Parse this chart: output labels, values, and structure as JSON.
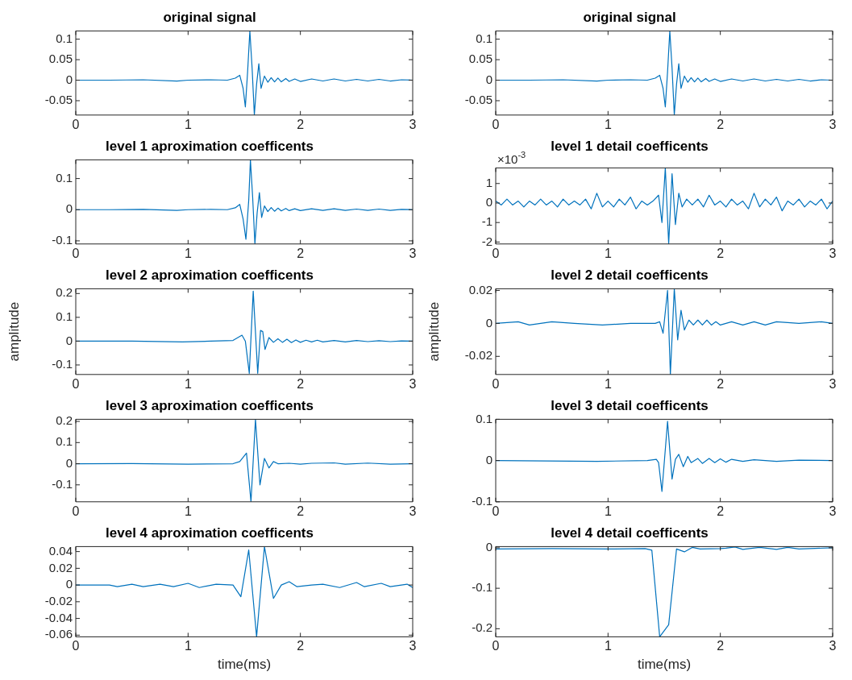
{
  "chart_data": [
    {
      "type": "line",
      "title": "original signal",
      "color": "#0072bd",
      "xlim": [
        0,
        3
      ],
      "xticks": [
        0,
        1,
        2,
        3
      ],
      "ylim": [
        -0.085,
        0.12
      ],
      "yticks": [
        -0.05,
        0,
        0.05,
        0.1
      ],
      "x": [
        0,
        0.3,
        0.6,
        0.9,
        1.0,
        1.2,
        1.35,
        1.42,
        1.46,
        1.49,
        1.51,
        1.53,
        1.55,
        1.57,
        1.59,
        1.61,
        1.63,
        1.65,
        1.68,
        1.71,
        1.74,
        1.77,
        1.8,
        1.83,
        1.87,
        1.9,
        1.95,
        2.0,
        2.1,
        2.2,
        2.3,
        2.4,
        2.5,
        2.6,
        2.7,
        2.8,
        2.9,
        3
      ],
      "values": [
        0,
        0,
        0.001,
        -0.002,
        0,
        0.001,
        0,
        0.005,
        0.012,
        -0.02,
        -0.065,
        0.02,
        0.12,
        0.03,
        -0.085,
        -0.01,
        0.04,
        -0.02,
        0.01,
        -0.005,
        0.006,
        -0.004,
        0.005,
        -0.004,
        0.004,
        -0.003,
        0.003,
        -0.003,
        0.003,
        -0.002,
        0.003,
        -0.002,
        0.002,
        -0.002,
        0.002,
        -0.002,
        0.001,
        0
      ]
    },
    {
      "type": "line",
      "title": "original signal",
      "color": "#0072bd",
      "xlim": [
        0,
        3
      ],
      "xticks": [
        0,
        1,
        2,
        3
      ],
      "ylim": [
        -0.085,
        0.12
      ],
      "yticks": [
        -0.05,
        0,
        0.05,
        0.1
      ],
      "x": [
        0,
        0.3,
        0.6,
        0.9,
        1.0,
        1.2,
        1.35,
        1.42,
        1.46,
        1.49,
        1.51,
        1.53,
        1.55,
        1.57,
        1.59,
        1.61,
        1.63,
        1.65,
        1.68,
        1.71,
        1.74,
        1.77,
        1.8,
        1.83,
        1.87,
        1.9,
        1.95,
        2.0,
        2.1,
        2.2,
        2.3,
        2.4,
        2.5,
        2.6,
        2.7,
        2.8,
        2.9,
        3
      ],
      "values": [
        0,
        0,
        0.001,
        -0.002,
        0,
        0.001,
        0,
        0.005,
        0.012,
        -0.02,
        -0.065,
        0.02,
        0.12,
        0.03,
        -0.085,
        -0.01,
        0.04,
        -0.02,
        0.01,
        -0.005,
        0.006,
        -0.004,
        0.005,
        -0.004,
        0.004,
        -0.003,
        0.003,
        -0.003,
        0.003,
        -0.002,
        0.003,
        -0.002,
        0.002,
        -0.002,
        0.002,
        -0.002,
        0.001,
        0
      ]
    },
    {
      "type": "line",
      "title": "level 1 aproximation coefficents",
      "color": "#0072bd",
      "xlim": [
        0,
        3
      ],
      "xticks": [
        0,
        1,
        2,
        3
      ],
      "ylim": [
        -0.11,
        0.16
      ],
      "yticks": [
        -0.1,
        0,
        0.1
      ],
      "x": [
        0,
        0.3,
        0.6,
        0.9,
        1.0,
        1.2,
        1.35,
        1.42,
        1.46,
        1.49,
        1.515,
        1.54,
        1.555,
        1.575,
        1.595,
        1.615,
        1.635,
        1.655,
        1.68,
        1.71,
        1.74,
        1.77,
        1.8,
        1.83,
        1.87,
        1.9,
        1.95,
        2.0,
        2.1,
        2.2,
        2.3,
        2.4,
        2.5,
        2.6,
        2.7,
        2.8,
        2.9,
        3
      ],
      "values": [
        0,
        0,
        0.001,
        -0.002,
        0,
        0.001,
        0,
        0.006,
        0.017,
        -0.03,
        -0.095,
        0.03,
        0.16,
        0.04,
        -0.11,
        -0.01,
        0.055,
        -0.025,
        0.012,
        -0.006,
        0.007,
        -0.005,
        0.005,
        -0.004,
        0.004,
        -0.003,
        0.003,
        -0.003,
        0.003,
        -0.002,
        0.003,
        -0.002,
        0.002,
        -0.002,
        0.002,
        -0.002,
        0.001,
        0
      ]
    },
    {
      "type": "line",
      "title": "level 1 detail coefficents",
      "color": "#0072bd",
      "xlim": [
        0,
        3
      ],
      "xticks": [
        0,
        1,
        2,
        3
      ],
      "ylim": [
        -2.1,
        1.8
      ],
      "yticks": [
        -2,
        -1,
        0,
        1
      ],
      "annotations": [
        "×10$^{-3}$"
      ],
      "x": [
        0,
        0.05,
        0.1,
        0.15,
        0.2,
        0.25,
        0.3,
        0.35,
        0.4,
        0.45,
        0.5,
        0.55,
        0.6,
        0.65,
        0.7,
        0.75,
        0.8,
        0.85,
        0.9,
        0.95,
        1.0,
        1.05,
        1.1,
        1.15,
        1.2,
        1.25,
        1.3,
        1.35,
        1.4,
        1.45,
        1.48,
        1.51,
        1.54,
        1.57,
        1.6,
        1.63,
        1.66,
        1.7,
        1.75,
        1.8,
        1.85,
        1.9,
        1.95,
        2.0,
        2.05,
        2.1,
        2.15,
        2.2,
        2.25,
        2.3,
        2.35,
        2.4,
        2.45,
        2.5,
        2.55,
        2.6,
        2.65,
        2.7,
        2.75,
        2.8,
        2.85,
        2.9,
        2.95,
        3.0
      ],
      "values": [
        0.1,
        -0.1,
        0.2,
        -0.1,
        0.1,
        -0.2,
        0.1,
        -0.1,
        0.2,
        -0.1,
        0.1,
        -0.2,
        0.2,
        -0.1,
        0.1,
        -0.1,
        0.2,
        -0.3,
        0.5,
        -0.2,
        0.1,
        -0.2,
        0.2,
        -0.1,
        0.3,
        -0.3,
        0.1,
        -0.1,
        0.1,
        0.4,
        -1.0,
        1.8,
        -2.1,
        1.5,
        -1.1,
        0.5,
        -0.2,
        0.2,
        -0.1,
        0.2,
        -0.2,
        0.4,
        -0.1,
        0.1,
        -0.2,
        0.2,
        -0.1,
        0.1,
        -0.3,
        0.5,
        -0.2,
        0.2,
        -0.1,
        0.3,
        -0.4,
        0.1,
        -0.1,
        0.2,
        -0.2,
        0.1,
        -0.1,
        0.2,
        -0.3,
        0.1
      ]
    },
    {
      "type": "line",
      "title": "level 2 aproximation coefficents",
      "ylabel": "amplitude",
      "color": "#0072bd",
      "xlim": [
        0,
        3
      ],
      "xticks": [
        0,
        1,
        2,
        3
      ],
      "ylim": [
        -0.14,
        0.22
      ],
      "yticks": [
        -0.1,
        0,
        0.1,
        0.2
      ],
      "x": [
        0,
        0.5,
        0.95,
        1.2,
        1.4,
        1.48,
        1.51,
        1.545,
        1.58,
        1.62,
        1.645,
        1.665,
        1.685,
        1.72,
        1.76,
        1.8,
        1.84,
        1.88,
        1.92,
        1.96,
        2.0,
        2.05,
        2.1,
        2.15,
        2.2,
        2.3,
        2.4,
        2.5,
        2.6,
        2.7,
        2.8,
        2.9,
        3
      ],
      "values": [
        0,
        0,
        -0.003,
        0,
        0.003,
        0.025,
        0,
        -0.135,
        0.21,
        -0.135,
        0.045,
        0.04,
        -0.035,
        0.015,
        -0.005,
        0.01,
        -0.005,
        0.008,
        -0.006,
        0.005,
        -0.005,
        0.004,
        -0.003,
        0.004,
        -0.003,
        0.003,
        -0.003,
        0.003,
        -0.002,
        0.002,
        -0.002,
        0.001,
        0
      ]
    },
    {
      "type": "line",
      "title": "level 2 detail coefficents",
      "ylabel": "amplitude",
      "color": "#0072bd",
      "xlim": [
        0,
        3
      ],
      "xticks": [
        0,
        1,
        2,
        3
      ],
      "ylim": [
        -0.031,
        0.021
      ],
      "yticks": [
        -0.02,
        0,
        0.02
      ],
      "x": [
        0,
        0.2,
        0.3,
        0.5,
        0.7,
        0.95,
        1.2,
        1.42,
        1.46,
        1.49,
        1.53,
        1.555,
        1.59,
        1.62,
        1.65,
        1.68,
        1.72,
        1.76,
        1.8,
        1.84,
        1.88,
        1.92,
        1.96,
        2.0,
        2.1,
        2.2,
        2.3,
        2.4,
        2.5,
        2.7,
        2.9,
        3
      ],
      "values": [
        0,
        0.001,
        -0.001,
        0.001,
        0,
        -0.001,
        0,
        0,
        0.001,
        -0.006,
        0.02,
        -0.031,
        0.021,
        -0.01,
        0.008,
        -0.004,
        0.002,
        -0.001,
        0.002,
        -0.001,
        0.002,
        -0.001,
        0.001,
        -0.001,
        0.001,
        -0.001,
        0.001,
        -0.001,
        0.001,
        0,
        0.001,
        0
      ]
    },
    {
      "type": "line",
      "title": "level 3 aproximation coefficents",
      "color": "#0072bd",
      "xlim": [
        0,
        3
      ],
      "xticks": [
        0,
        1,
        2,
        3
      ],
      "ylim": [
        -0.18,
        0.21
      ],
      "yticks": [
        -0.1,
        0,
        0.1,
        0.2
      ],
      "x": [
        0,
        0.5,
        1.0,
        1.4,
        1.46,
        1.52,
        1.56,
        1.6,
        1.64,
        1.68,
        1.72,
        1.76,
        1.8,
        1.9,
        2.0,
        2.1,
        2.3,
        2.4,
        2.6,
        2.8,
        3
      ],
      "values": [
        0,
        0.001,
        -0.002,
        0,
        0.01,
        0.05,
        -0.18,
        0.21,
        -0.1,
        0.025,
        -0.02,
        0.01,
        0,
        0.002,
        -0.002,
        0.002,
        0.004,
        -0.002,
        0.003,
        -0.002,
        0
      ]
    },
    {
      "type": "line",
      "title": "level 3 detail coefficents",
      "color": "#0072bd",
      "xlim": [
        0,
        3
      ],
      "xticks": [
        0,
        1,
        2,
        3
      ],
      "ylim": [
        -0.1,
        0.1
      ],
      "yticks": [
        -0.1,
        0,
        0.1
      ],
      "x": [
        0,
        0.9,
        1.35,
        1.43,
        1.45,
        1.48,
        1.53,
        1.57,
        1.6,
        1.63,
        1.67,
        1.71,
        1.74,
        1.8,
        1.84,
        1.9,
        1.95,
        2.0,
        2.05,
        2.1,
        2.2,
        2.3,
        2.5,
        2.7,
        3
      ],
      "values": [
        0,
        -0.002,
        0,
        0.003,
        -0.005,
        -0.075,
        0.095,
        -0.045,
        0.003,
        0.015,
        -0.015,
        0.01,
        -0.005,
        0.005,
        -0.007,
        0.005,
        -0.005,
        0.004,
        -0.004,
        0.003,
        -0.002,
        0.002,
        -0.002,
        0.001,
        0
      ]
    },
    {
      "type": "line",
      "title": "level 4 aproximation coefficents",
      "xlabel": "time(ms)",
      "color": "#0072bd",
      "xlim": [
        0,
        3
      ],
      "xticks": [
        0,
        1,
        2,
        3
      ],
      "ylim": [
        -0.062,
        0.046
      ],
      "yticks": [
        -0.06,
        -0.04,
        -0.02,
        0,
        0.02,
        0.04
      ],
      "x": [
        0,
        0.3,
        0.37,
        0.5,
        0.6,
        0.75,
        0.87,
        1.0,
        1.1,
        1.25,
        1.4,
        1.47,
        1.54,
        1.61,
        1.68,
        1.76,
        1.83,
        1.9,
        1.97,
        2.1,
        2.2,
        2.35,
        2.5,
        2.57,
        2.72,
        2.8,
        2.95,
        3
      ],
      "values": [
        0,
        0,
        -0.002,
        0.001,
        -0.002,
        0.001,
        -0.002,
        0.002,
        -0.003,
        0.001,
        0,
        -0.014,
        0.042,
        -0.062,
        0.046,
        -0.016,
        0,
        0.004,
        -0.002,
        0,
        0.001,
        -0.003,
        0.003,
        -0.002,
        0.002,
        -0.002,
        0.001,
        -0.003
      ]
    },
    {
      "type": "line",
      "title": "level 4 detail coefficents",
      "xlabel": "time(ms)",
      "color": "#0072bd",
      "xlim": [
        0,
        3
      ],
      "xticks": [
        0,
        1,
        2,
        3
      ],
      "ylim": [
        -0.22,
        0.003
      ],
      "yticks": [
        -0.2,
        -0.1,
        0
      ],
      "x": [
        0,
        0.5,
        1.0,
        1.33,
        1.39,
        1.46,
        1.54,
        1.61,
        1.68,
        1.75,
        1.82,
        2.0,
        2.05,
        2.13,
        2.2,
        2.35,
        2.5,
        2.6,
        2.7,
        3
      ],
      "values": [
        -0.003,
        -0.002,
        -0.003,
        -0.002,
        -0.006,
        -0.22,
        -0.19,
        -0.003,
        -0.01,
        0.001,
        -0.003,
        -0.002,
        -0.001,
        0.002,
        -0.004,
        0.001,
        -0.004,
        0.001,
        -0.003,
        0
      ]
    }
  ]
}
